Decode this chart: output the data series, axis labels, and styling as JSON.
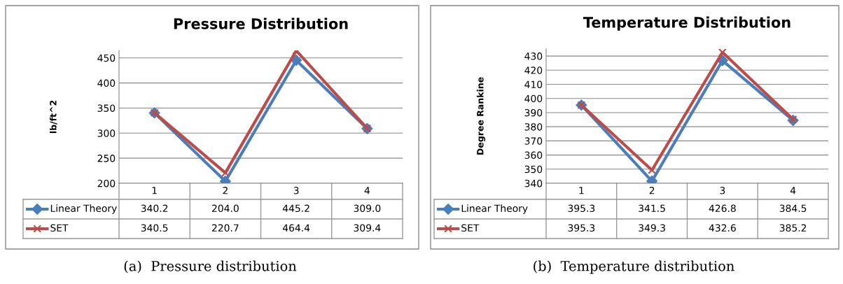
{
  "chart_data": [
    {
      "type": "line",
      "title": "Pressure Distribution",
      "ylabel": "lb/ft^2",
      "categories": [
        "1",
        "2",
        "3",
        "4"
      ],
      "series": [
        {
          "name": "Linear Theory",
          "color": "#4a7ebb",
          "marker": "diamond",
          "values": [
            340.2,
            204.0,
            445.2,
            309.0
          ],
          "value_labels": [
            "340.2",
            "204.0",
            "445.2",
            "309.0"
          ]
        },
        {
          "name": "SET",
          "color": "#be4b48",
          "marker": "cross",
          "values": [
            340.5,
            220.7,
            464.4,
            309.4
          ],
          "value_labels": [
            "340.5",
            "220.7",
            "464.4",
            "309.4"
          ]
        }
      ],
      "ylim": [
        200,
        465
      ],
      "yticks": [
        200,
        250,
        300,
        350,
        400,
        450
      ],
      "grid": "y",
      "tick_labels": "y",
      "legend": "bottom",
      "annotations": [
        "(a)  Pressure distribution"
      ]
    },
    {
      "type": "line",
      "title": "Temperature Distribution",
      "ylabel": "Degree Rankine",
      "categories": [
        "1",
        "2",
        "3",
        "4"
      ],
      "series": [
        {
          "name": "Linear Theory",
          "color": "#4a7ebb",
          "marker": "diamond",
          "values": [
            395.3,
            341.5,
            426.8,
            384.5
          ],
          "value_labels": [
            "395.3",
            "341.5",
            "426.8",
            "384.5"
          ]
        },
        {
          "name": "SET",
          "color": "#be4b48",
          "marker": "cross",
          "values": [
            395.3,
            349.3,
            432.6,
            385.2
          ],
          "value_labels": [
            "395.3",
            "349.3",
            "432.6",
            "385.2"
          ]
        }
      ],
      "ylim": [
        340,
        435
      ],
      "yticks": [
        340,
        350,
        360,
        370,
        380,
        390,
        400,
        410,
        420,
        430
      ],
      "grid": "y",
      "tick_labels": "y",
      "legend": "bottom",
      "annotations": [
        "(b)  Temperature distribution"
      ]
    }
  ]
}
